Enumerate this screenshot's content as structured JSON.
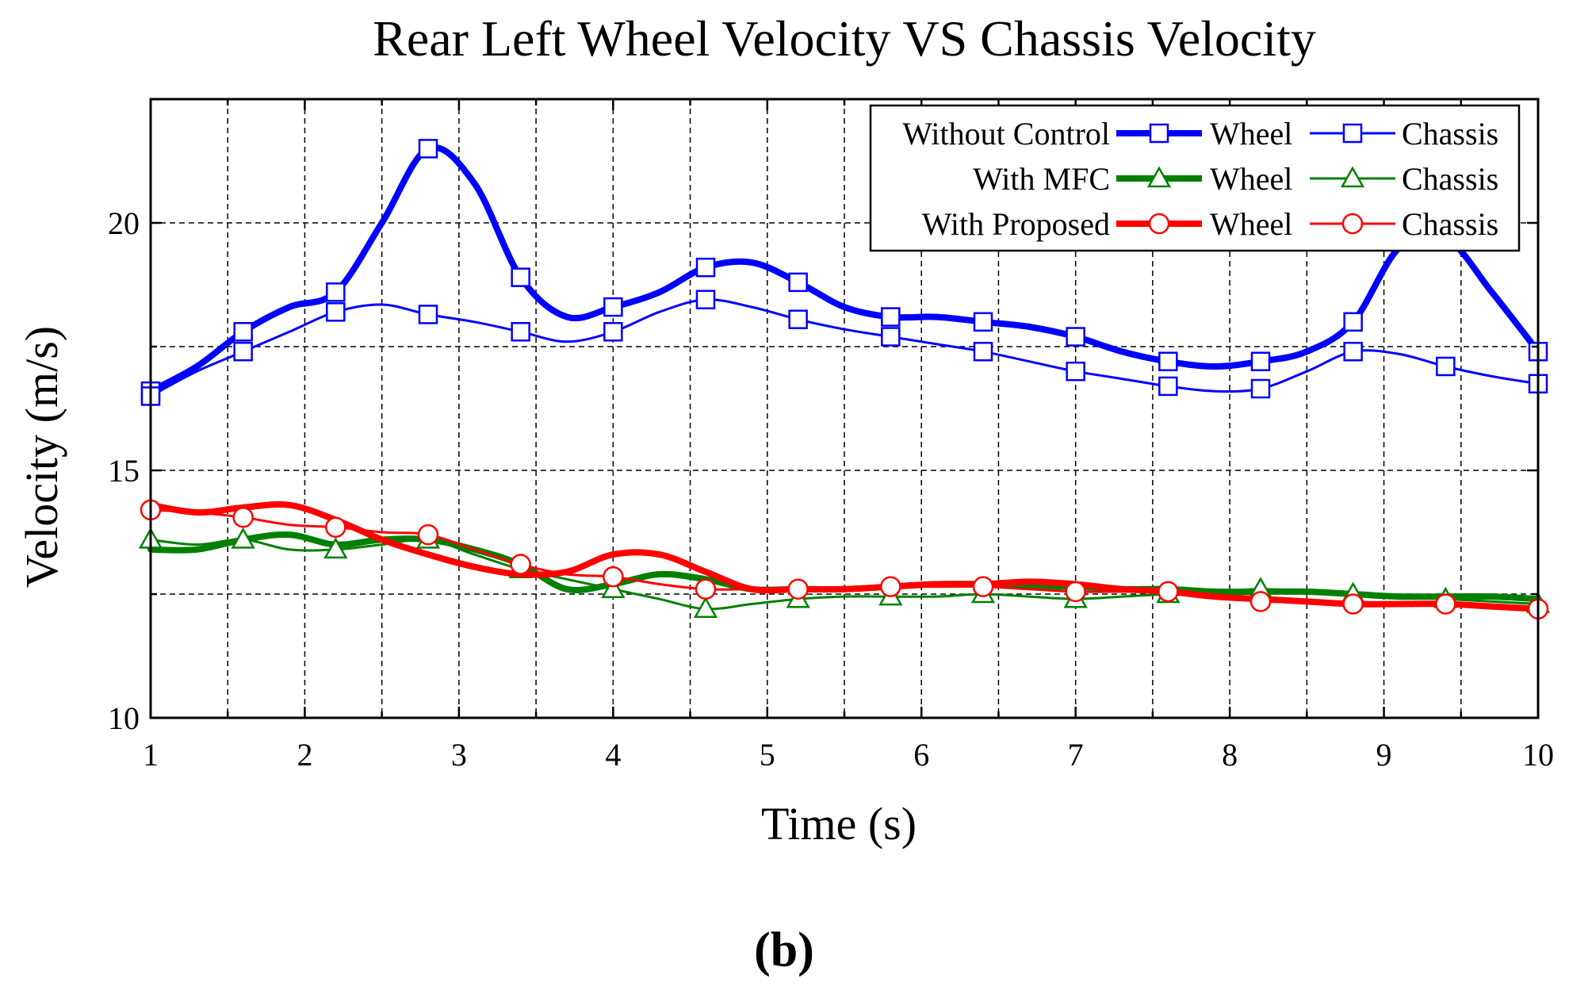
{
  "chart_data": {
    "type": "line",
    "title": "Rear Left Wheel Velocity VS Chassis Velocity",
    "xlabel": "Time (s)",
    "ylabel": "Velocity (m/s)",
    "xlim": [
      1,
      10
    ],
    "ylim": [
      10,
      22.5
    ],
    "xticks": [
      1,
      2,
      3,
      4,
      5,
      6,
      7,
      8,
      9,
      10
    ],
    "yticks": [
      10,
      15,
      20
    ],
    "grid": true,
    "legend_position": "top-right",
    "caption": "(b)",
    "legend_rows": [
      {
        "label": "Without Control",
        "color": "#0000ff",
        "marker": "square",
        "wheel": "Wheel",
        "chassis": "Chassis"
      },
      {
        "label": "With MFC",
        "color": "#008000",
        "marker": "triangle",
        "wheel": "Wheel",
        "chassis": "Chassis"
      },
      {
        "label": "With Proposed",
        "color": "#ff0000",
        "marker": "circle",
        "wheel": "Wheel",
        "chassis": "Chassis"
      }
    ],
    "series": [
      {
        "name": "Without Control Wheel",
        "color": "#0000ff",
        "width": "thick",
        "marker": "square",
        "x": [
          1,
          1.3,
          1.6,
          1.9,
          2.2,
          2.5,
          2.8,
          3.1,
          3.4,
          3.7,
          4.0,
          4.3,
          4.6,
          4.9,
          5.2,
          5.5,
          5.8,
          6.1,
          6.4,
          6.7,
          7.0,
          7.3,
          7.6,
          7.9,
          8.2,
          8.5,
          8.8,
          9.1,
          9.4,
          9.7,
          10
        ],
        "y": [
          16.6,
          17.1,
          17.8,
          18.3,
          18.6,
          20.0,
          21.5,
          20.8,
          18.9,
          18.1,
          18.3,
          18.6,
          19.1,
          19.2,
          18.8,
          18.3,
          18.1,
          18.1,
          18.0,
          17.9,
          17.7,
          17.4,
          17.2,
          17.1,
          17.2,
          17.4,
          18.0,
          19.5,
          19.7,
          18.6,
          17.4
        ],
        "marker_x": [
          1,
          1.6,
          2.2,
          2.8,
          3.4,
          4.0,
          4.6,
          5.2,
          5.8,
          6.4,
          7.0,
          7.6,
          8.2,
          8.8,
          10
        ]
      },
      {
        "name": "Without Control Chassis",
        "color": "#0000ff",
        "width": "thin",
        "marker": "square",
        "x": [
          1,
          1.3,
          1.6,
          1.9,
          2.2,
          2.5,
          2.8,
          3.1,
          3.4,
          3.7,
          4.0,
          4.3,
          4.6,
          4.9,
          5.2,
          5.5,
          5.8,
          6.1,
          6.4,
          6.7,
          7.0,
          7.3,
          7.6,
          7.9,
          8.2,
          8.5,
          8.8,
          9.1,
          9.4,
          9.7,
          10
        ],
        "y": [
          16.5,
          17.0,
          17.4,
          17.8,
          18.2,
          18.35,
          18.15,
          18.0,
          17.8,
          17.6,
          17.8,
          18.2,
          18.45,
          18.3,
          18.05,
          17.85,
          17.7,
          17.55,
          17.4,
          17.2,
          17.0,
          16.85,
          16.7,
          16.6,
          16.65,
          17.0,
          17.4,
          17.35,
          17.1,
          16.9,
          16.75
        ],
        "marker_x": [
          1,
          1.6,
          2.2,
          2.8,
          3.4,
          4.0,
          4.6,
          5.2,
          5.8,
          6.4,
          7.0,
          7.6,
          8.2,
          8.8,
          9.4,
          10
        ]
      },
      {
        "name": "With MFC Wheel",
        "color": "#008000",
        "width": "thick",
        "marker": "triangle",
        "x": [
          1,
          1.3,
          1.6,
          1.9,
          2.2,
          2.5,
          2.8,
          3.1,
          3.4,
          3.7,
          4.0,
          4.3,
          4.6,
          4.9,
          5.2,
          5.5,
          5.8,
          6.1,
          6.4,
          6.7,
          7.0,
          7.3,
          7.6,
          7.9,
          8.2,
          8.5,
          8.8,
          9.1,
          9.4,
          9.7,
          10
        ],
        "y": [
          13.4,
          13.4,
          13.6,
          13.7,
          13.5,
          13.6,
          13.6,
          13.4,
          13.1,
          12.6,
          12.7,
          12.9,
          12.8,
          12.6,
          12.6,
          12.6,
          12.65,
          12.7,
          12.7,
          12.65,
          12.65,
          12.6,
          12.6,
          12.55,
          12.55,
          12.55,
          12.5,
          12.45,
          12.45,
          12.45,
          12.4
        ],
        "marker_x": []
      },
      {
        "name": "With MFC Chassis",
        "color": "#008000",
        "width": "thin",
        "marker": "triangle",
        "x": [
          1,
          1.3,
          1.6,
          1.9,
          2.2,
          2.5,
          2.8,
          3.1,
          3.4,
          3.7,
          4.0,
          4.3,
          4.6,
          4.9,
          5.2,
          5.5,
          5.8,
          6.1,
          6.4,
          6.7,
          7.0,
          7.3,
          7.6,
          7.9,
          8.2,
          8.5,
          8.8,
          9.1,
          9.4,
          9.7,
          10
        ],
        "y": [
          13.6,
          13.5,
          13.6,
          13.4,
          13.4,
          13.5,
          13.6,
          13.3,
          13.0,
          12.8,
          12.6,
          12.4,
          12.2,
          12.3,
          12.4,
          12.45,
          12.45,
          12.45,
          12.5,
          12.45,
          12.4,
          12.45,
          12.5,
          12.55,
          12.6,
          12.55,
          12.5,
          12.45,
          12.4,
          12.35,
          12.3
        ],
        "marker_x": [
          1,
          1.6,
          2.2,
          2.8,
          3.4,
          4.0,
          4.6,
          5.2,
          5.8,
          6.4,
          7.0,
          7.6,
          8.2,
          8.8,
          9.4,
          10
        ]
      },
      {
        "name": "With Proposed Wheel",
        "color": "#ff0000",
        "width": "thick",
        "marker": "circle",
        "x": [
          1,
          1.3,
          1.6,
          1.9,
          2.2,
          2.5,
          2.8,
          3.1,
          3.4,
          3.7,
          4.0,
          4.3,
          4.6,
          4.9,
          5.2,
          5.5,
          5.8,
          6.1,
          6.4,
          6.7,
          7.0,
          7.3,
          7.6,
          7.9,
          8.2,
          8.5,
          8.8,
          9.1,
          9.4,
          9.7,
          10
        ],
        "y": [
          14.3,
          14.15,
          14.25,
          14.3,
          14.0,
          13.6,
          13.3,
          13.05,
          12.9,
          12.95,
          13.3,
          13.3,
          12.95,
          12.6,
          12.6,
          12.6,
          12.65,
          12.7,
          12.7,
          12.75,
          12.7,
          12.6,
          12.55,
          12.45,
          12.4,
          12.35,
          12.3,
          12.3,
          12.3,
          12.25,
          12.2
        ],
        "marker_x": []
      },
      {
        "name": "With Proposed Chassis",
        "color": "#ff0000",
        "width": "thin",
        "marker": "circle",
        "x": [
          1,
          1.3,
          1.6,
          1.9,
          2.2,
          2.5,
          2.8,
          3.1,
          3.4,
          3.7,
          4.0,
          4.3,
          4.6,
          4.9,
          5.2,
          5.5,
          5.8,
          6.1,
          6.4,
          6.7,
          7.0,
          7.3,
          7.6,
          7.9,
          8.2,
          8.5,
          8.8,
          9.1,
          9.4,
          9.7,
          10
        ],
        "y": [
          14.2,
          14.15,
          14.05,
          13.9,
          13.85,
          13.75,
          13.7,
          13.4,
          13.1,
          12.9,
          12.85,
          12.7,
          12.6,
          12.6,
          12.6,
          12.6,
          12.65,
          12.65,
          12.65,
          12.6,
          12.55,
          12.55,
          12.55,
          12.45,
          12.35,
          12.35,
          12.3,
          12.3,
          12.3,
          12.25,
          12.2
        ],
        "marker_x": [
          1,
          1.6,
          2.2,
          2.8,
          3.4,
          4.0,
          4.6,
          5.2,
          5.8,
          6.4,
          7.0,
          7.6,
          8.2,
          8.8,
          9.4,
          10
        ]
      }
    ]
  }
}
